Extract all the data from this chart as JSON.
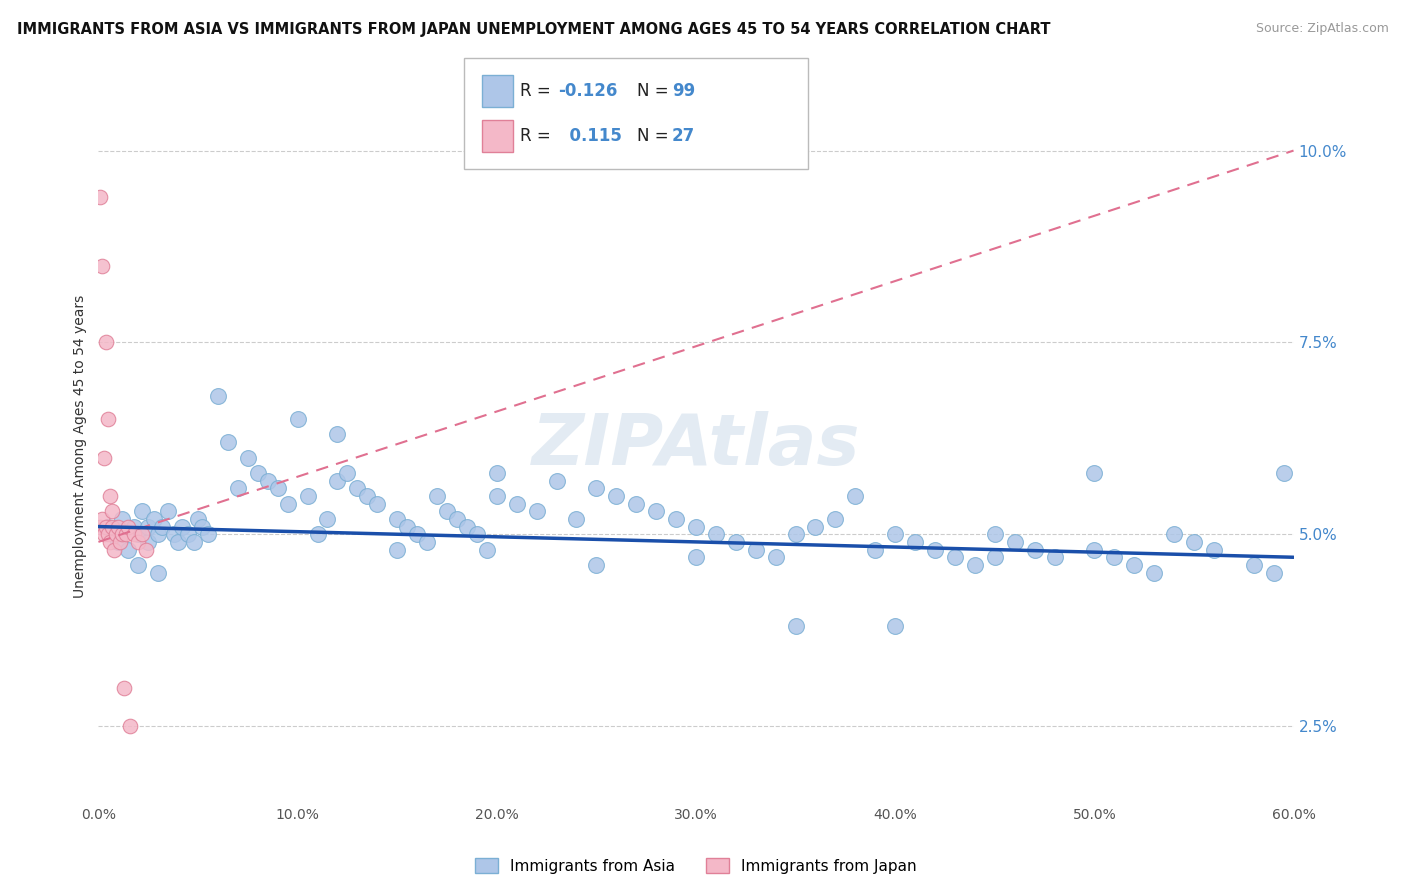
{
  "title": "IMMIGRANTS FROM ASIA VS IMMIGRANTS FROM JAPAN UNEMPLOYMENT AMONG AGES 45 TO 54 YEARS CORRELATION CHART",
  "source": "Source: ZipAtlas.com",
  "ylabel": "Unemployment Among Ages 45 to 54 years",
  "xlim": [
    0.0,
    0.6
  ],
  "ylim": [
    0.015,
    0.108
  ],
  "xticks": [
    0.0,
    0.1,
    0.2,
    0.3,
    0.4,
    0.5,
    0.6
  ],
  "xticklabels": [
    "0.0%",
    "10.0%",
    "20.0%",
    "30.0%",
    "40.0%",
    "50.0%",
    "60.0%"
  ],
  "yticks_right": [
    0.025,
    0.05,
    0.075,
    0.1
  ],
  "yticklabels_right": [
    "2.5%",
    "5.0%",
    "7.5%",
    "10.0%"
  ],
  "grid_color": "#cccccc",
  "background_color": "#ffffff",
  "watermark": "ZIPAtlas",
  "asia_color": "#aec6e8",
  "asia_edge": "#7bafd4",
  "japan_color": "#f4b8c8",
  "japan_edge": "#e08098",
  "asia_line_color": "#1a4faa",
  "japan_line_color": "#e07090",
  "asia_scatter_x": [
    0.005,
    0.008,
    0.01,
    0.012,
    0.015,
    0.018,
    0.02,
    0.022,
    0.025,
    0.025,
    0.028,
    0.03,
    0.032,
    0.035,
    0.038,
    0.04,
    0.042,
    0.045,
    0.048,
    0.05,
    0.052,
    0.055,
    0.06,
    0.065,
    0.07,
    0.075,
    0.08,
    0.085,
    0.09,
    0.095,
    0.1,
    0.105,
    0.11,
    0.115,
    0.12,
    0.125,
    0.13,
    0.135,
    0.14,
    0.15,
    0.155,
    0.16,
    0.165,
    0.17,
    0.175,
    0.18,
    0.185,
    0.19,
    0.195,
    0.2,
    0.21,
    0.22,
    0.23,
    0.24,
    0.25,
    0.26,
    0.27,
    0.28,
    0.29,
    0.3,
    0.31,
    0.32,
    0.33,
    0.34,
    0.35,
    0.36,
    0.37,
    0.38,
    0.39,
    0.4,
    0.41,
    0.42,
    0.43,
    0.44,
    0.45,
    0.46,
    0.47,
    0.48,
    0.5,
    0.51,
    0.52,
    0.53,
    0.54,
    0.55,
    0.56,
    0.58,
    0.59,
    0.595,
    0.02,
    0.03,
    0.12,
    0.15,
    0.2,
    0.25,
    0.3,
    0.35,
    0.4,
    0.45,
    0.5
  ],
  "asia_scatter_y": [
    0.051,
    0.05,
    0.049,
    0.052,
    0.048,
    0.051,
    0.05,
    0.053,
    0.049,
    0.051,
    0.052,
    0.05,
    0.051,
    0.053,
    0.05,
    0.049,
    0.051,
    0.05,
    0.049,
    0.052,
    0.051,
    0.05,
    0.068,
    0.062,
    0.056,
    0.06,
    0.058,
    0.057,
    0.056,
    0.054,
    0.065,
    0.055,
    0.05,
    0.052,
    0.057,
    0.058,
    0.056,
    0.055,
    0.054,
    0.052,
    0.051,
    0.05,
    0.049,
    0.055,
    0.053,
    0.052,
    0.051,
    0.05,
    0.048,
    0.055,
    0.054,
    0.053,
    0.057,
    0.052,
    0.056,
    0.055,
    0.054,
    0.053,
    0.052,
    0.051,
    0.05,
    0.049,
    0.048,
    0.047,
    0.05,
    0.051,
    0.052,
    0.055,
    0.048,
    0.05,
    0.049,
    0.048,
    0.047,
    0.046,
    0.05,
    0.049,
    0.048,
    0.047,
    0.048,
    0.047,
    0.046,
    0.045,
    0.05,
    0.049,
    0.048,
    0.046,
    0.045,
    0.058,
    0.046,
    0.045,
    0.063,
    0.048,
    0.058,
    0.046,
    0.047,
    0.038,
    0.038,
    0.047,
    0.058
  ],
  "japan_scatter_x": [
    0.001,
    0.002,
    0.003,
    0.004,
    0.005,
    0.006,
    0.007,
    0.008,
    0.009,
    0.01,
    0.011,
    0.012,
    0.013,
    0.014,
    0.015,
    0.016,
    0.018,
    0.02,
    0.022,
    0.024,
    0.001,
    0.002,
    0.003,
    0.004,
    0.005,
    0.006,
    0.007
  ],
  "japan_scatter_y": [
    0.051,
    0.052,
    0.05,
    0.051,
    0.05,
    0.049,
    0.051,
    0.048,
    0.05,
    0.051,
    0.049,
    0.05,
    0.03,
    0.05,
    0.051,
    0.025,
    0.05,
    0.049,
    0.05,
    0.048,
    0.094,
    0.085,
    0.06,
    0.075,
    0.065,
    0.055,
    0.053
  ],
  "japan_line_x0": 0.0,
  "japan_line_y0": 0.049,
  "japan_line_x1": 0.6,
  "japan_line_y1": 0.1,
  "asia_line_x0": 0.0,
  "asia_line_y0": 0.051,
  "asia_line_x1": 0.6,
  "asia_line_y1": 0.047
}
